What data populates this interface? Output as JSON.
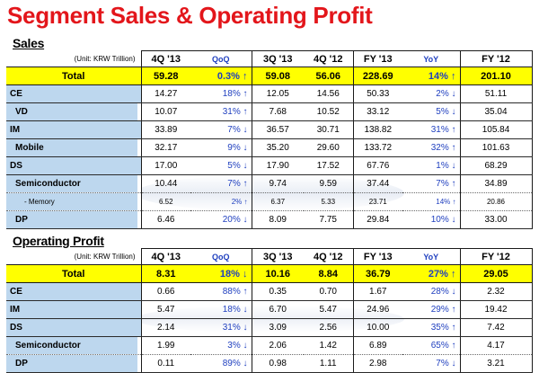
{
  "title": "Segment Sales & Operating Profit",
  "sales": {
    "section_label": "Sales",
    "unit": "(Unit: KRW Trillion)",
    "headers": [
      "4Q '13",
      "QoQ",
      "3Q '13",
      "4Q '12",
      "FY '13",
      "YoY",
      "FY '12"
    ],
    "rows": [
      {
        "label": "Total",
        "v": [
          "59.28",
          "0.3% ↑",
          "59.08",
          "56.06",
          "228.69",
          "14% ↑",
          "201.10"
        ]
      },
      {
        "label": "CE",
        "v": [
          "14.27",
          "18% ↑",
          "12.05",
          "14.56",
          "50.33",
          "2% ↓",
          "51.11"
        ]
      },
      {
        "label": "VD",
        "v": [
          "10.07",
          "31% ↑",
          "7.68",
          "10.52",
          "33.12",
          "5% ↓",
          "35.04"
        ]
      },
      {
        "label": "IM",
        "v": [
          "33.89",
          "7% ↓",
          "36.57",
          "30.71",
          "138.82",
          "31% ↑",
          "105.84"
        ]
      },
      {
        "label": "Mobile",
        "v": [
          "32.17",
          "9% ↓",
          "35.20",
          "29.60",
          "133.72",
          "32% ↑",
          "101.63"
        ]
      },
      {
        "label": "DS",
        "v": [
          "17.00",
          "5% ↓",
          "17.90",
          "17.52",
          "67.76",
          "1% ↓",
          "68.29"
        ]
      },
      {
        "label": "Semiconductor",
        "v": [
          "10.44",
          "7% ↑",
          "9.74",
          "9.59",
          "37.44",
          "7% ↑",
          "34.89"
        ]
      },
      {
        "label": "- Memory",
        "v": [
          "6.52",
          "2% ↑",
          "6.37",
          "5.33",
          "23.71",
          "14% ↑",
          "20.86"
        ]
      },
      {
        "label": "DP",
        "v": [
          "6.46",
          "20% ↓",
          "8.09",
          "7.75",
          "29.84",
          "10% ↓",
          "33.00"
        ]
      }
    ]
  },
  "op": {
    "section_label": "Operating Profit",
    "unit": "(Unit: KRW Trillion)",
    "headers": [
      "4Q '13",
      "QoQ",
      "3Q '13",
      "4Q '12",
      "FY '13",
      "YoY",
      "FY '12"
    ],
    "rows": [
      {
        "label": "Total",
        "v": [
          "8.31",
          "18% ↓",
          "10.16",
          "8.84",
          "36.79",
          "27% ↑",
          "29.05"
        ]
      },
      {
        "label": "CE",
        "v": [
          "0.66",
          "88% ↑",
          "0.35",
          "0.70",
          "1.67",
          "28% ↓",
          "2.32"
        ]
      },
      {
        "label": "IM",
        "v": [
          "5.47",
          "18% ↓",
          "6.70",
          "5.47",
          "24.96",
          "29% ↑",
          "19.42"
        ]
      },
      {
        "label": "DS",
        "v": [
          "2.14",
          "31% ↓",
          "3.09",
          "2.56",
          "10.00",
          "35% ↑",
          "7.42"
        ]
      },
      {
        "label": "Semiconductor",
        "v": [
          "1.99",
          "3% ↓",
          "2.06",
          "1.42",
          "6.89",
          "65% ↑",
          "4.17"
        ]
      },
      {
        "label": "DP",
        "v": [
          "0.11",
          "89% ↓",
          "0.98",
          "1.11",
          "2.98",
          "7% ↓",
          "3.21"
        ]
      }
    ]
  }
}
